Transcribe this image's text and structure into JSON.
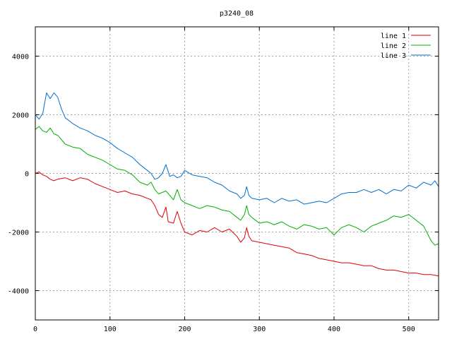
{
  "chart_data": {
    "type": "line",
    "title": "p3240_08",
    "xlabel": "",
    "ylabel": "",
    "xlim": [
      0,
      540
    ],
    "ylim": [
      -5000,
      5000
    ],
    "x_ticks": [
      0,
      100,
      200,
      300,
      400,
      500
    ],
    "y_ticks": [
      -4000,
      -2000,
      0,
      2000,
      4000
    ],
    "grid": true,
    "legend_position": "top-right",
    "series": [
      {
        "name": "line 1",
        "color": "#e00000",
        "points": [
          [
            0,
            0
          ],
          [
            5,
            50
          ],
          [
            10,
            -50
          ],
          [
            15,
            -100
          ],
          [
            20,
            -200
          ],
          [
            25,
            -250
          ],
          [
            30,
            -200
          ],
          [
            40,
            -150
          ],
          [
            50,
            -250
          ],
          [
            60,
            -150
          ],
          [
            70,
            -200
          ],
          [
            80,
            -350
          ],
          [
            90,
            -450
          ],
          [
            100,
            -550
          ],
          [
            110,
            -650
          ],
          [
            120,
            -600
          ],
          [
            130,
            -700
          ],
          [
            140,
            -750
          ],
          [
            150,
            -850
          ],
          [
            155,
            -900
          ],
          [
            160,
            -1100
          ],
          [
            165,
            -1400
          ],
          [
            170,
            -1500
          ],
          [
            175,
            -1150
          ],
          [
            178,
            -1650
          ],
          [
            185,
            -1700
          ],
          [
            190,
            -1300
          ],
          [
            195,
            -1700
          ],
          [
            200,
            -2000
          ],
          [
            210,
            -2100
          ],
          [
            220,
            -1950
          ],
          [
            230,
            -2000
          ],
          [
            240,
            -1850
          ],
          [
            250,
            -2000
          ],
          [
            260,
            -1900
          ],
          [
            270,
            -2150
          ],
          [
            275,
            -2350
          ],
          [
            280,
            -2200
          ],
          [
            283,
            -1850
          ],
          [
            286,
            -2150
          ],
          [
            290,
            -2300
          ],
          [
            300,
            -2350
          ],
          [
            310,
            -2400
          ],
          [
            320,
            -2450
          ],
          [
            330,
            -2500
          ],
          [
            340,
            -2550
          ],
          [
            350,
            -2700
          ],
          [
            360,
            -2750
          ],
          [
            370,
            -2800
          ],
          [
            380,
            -2900
          ],
          [
            390,
            -2950
          ],
          [
            400,
            -3000
          ],
          [
            410,
            -3050
          ],
          [
            420,
            -3050
          ],
          [
            430,
            -3100
          ],
          [
            440,
            -3150
          ],
          [
            450,
            -3150
          ],
          [
            460,
            -3250
          ],
          [
            470,
            -3300
          ],
          [
            480,
            -3300
          ],
          [
            490,
            -3350
          ],
          [
            500,
            -3400
          ],
          [
            510,
            -3400
          ],
          [
            520,
            -3450
          ],
          [
            530,
            -3450
          ],
          [
            540,
            -3500
          ]
        ]
      },
      {
        "name": "line 2",
        "color": "#00b000",
        "points": [
          [
            0,
            1500
          ],
          [
            5,
            1600
          ],
          [
            10,
            1450
          ],
          [
            15,
            1400
          ],
          [
            20,
            1550
          ],
          [
            25,
            1350
          ],
          [
            30,
            1300
          ],
          [
            40,
            1000
          ],
          [
            50,
            900
          ],
          [
            60,
            850
          ],
          [
            70,
            650
          ],
          [
            80,
            550
          ],
          [
            90,
            450
          ],
          [
            100,
            300
          ],
          [
            110,
            150
          ],
          [
            120,
            100
          ],
          [
            130,
            -50
          ],
          [
            140,
            -300
          ],
          [
            150,
            -400
          ],
          [
            155,
            -300
          ],
          [
            160,
            -550
          ],
          [
            165,
            -700
          ],
          [
            170,
            -650
          ],
          [
            175,
            -600
          ],
          [
            180,
            -750
          ],
          [
            185,
            -900
          ],
          [
            190,
            -550
          ],
          [
            195,
            -900
          ],
          [
            200,
            -1000
          ],
          [
            210,
            -1100
          ],
          [
            220,
            -1200
          ],
          [
            230,
            -1100
          ],
          [
            240,
            -1150
          ],
          [
            250,
            -1250
          ],
          [
            260,
            -1300
          ],
          [
            270,
            -1500
          ],
          [
            275,
            -1600
          ],
          [
            280,
            -1400
          ],
          [
            283,
            -1100
          ],
          [
            286,
            -1400
          ],
          [
            290,
            -1500
          ],
          [
            300,
            -1700
          ],
          [
            310,
            -1650
          ],
          [
            320,
            -1750
          ],
          [
            330,
            -1650
          ],
          [
            340,
            -1800
          ],
          [
            350,
            -1900
          ],
          [
            360,
            -1750
          ],
          [
            370,
            -1800
          ],
          [
            380,
            -1900
          ],
          [
            390,
            -1850
          ],
          [
            400,
            -2100
          ],
          [
            410,
            -1850
          ],
          [
            420,
            -1750
          ],
          [
            430,
            -1850
          ],
          [
            440,
            -2000
          ],
          [
            450,
            -1800
          ],
          [
            460,
            -1700
          ],
          [
            470,
            -1600
          ],
          [
            480,
            -1450
          ],
          [
            490,
            -1500
          ],
          [
            500,
            -1400
          ],
          [
            510,
            -1600
          ],
          [
            520,
            -1800
          ],
          [
            530,
            -2300
          ],
          [
            535,
            -2450
          ],
          [
            540,
            -2400
          ]
        ]
      },
      {
        "name": "line 3",
        "color": "#0070d0",
        "points": [
          [
            0,
            2000
          ],
          [
            5,
            1850
          ],
          [
            10,
            2050
          ],
          [
            15,
            2750
          ],
          [
            20,
            2550
          ],
          [
            25,
            2750
          ],
          [
            30,
            2600
          ],
          [
            35,
            2200
          ],
          [
            40,
            1900
          ],
          [
            50,
            1700
          ],
          [
            60,
            1550
          ],
          [
            70,
            1450
          ],
          [
            80,
            1300
          ],
          [
            90,
            1200
          ],
          [
            100,
            1050
          ],
          [
            110,
            850
          ],
          [
            120,
            700
          ],
          [
            130,
            550
          ],
          [
            140,
            300
          ],
          [
            150,
            100
          ],
          [
            155,
            0
          ],
          [
            160,
            -200
          ],
          [
            165,
            -150
          ],
          [
            170,
            0
          ],
          [
            175,
            300
          ],
          [
            180,
            -100
          ],
          [
            185,
            -50
          ],
          [
            190,
            -150
          ],
          [
            195,
            -100
          ],
          [
            200,
            100
          ],
          [
            210,
            -50
          ],
          [
            220,
            -100
          ],
          [
            230,
            -150
          ],
          [
            240,
            -300
          ],
          [
            250,
            -400
          ],
          [
            260,
            -600
          ],
          [
            270,
            -700
          ],
          [
            275,
            -850
          ],
          [
            280,
            -750
          ],
          [
            283,
            -450
          ],
          [
            286,
            -750
          ],
          [
            290,
            -850
          ],
          [
            300,
            -900
          ],
          [
            310,
            -850
          ],
          [
            320,
            -1000
          ],
          [
            330,
            -850
          ],
          [
            340,
            -950
          ],
          [
            350,
            -900
          ],
          [
            360,
            -1050
          ],
          [
            370,
            -1000
          ],
          [
            380,
            -950
          ],
          [
            390,
            -1000
          ],
          [
            400,
            -850
          ],
          [
            410,
            -700
          ],
          [
            420,
            -650
          ],
          [
            430,
            -650
          ],
          [
            440,
            -550
          ],
          [
            450,
            -650
          ],
          [
            460,
            -550
          ],
          [
            470,
            -700
          ],
          [
            480,
            -550
          ],
          [
            490,
            -600
          ],
          [
            500,
            -400
          ],
          [
            510,
            -500
          ],
          [
            520,
            -300
          ],
          [
            530,
            -400
          ],
          [
            535,
            -250
          ],
          [
            540,
            -450
          ]
        ]
      }
    ]
  }
}
